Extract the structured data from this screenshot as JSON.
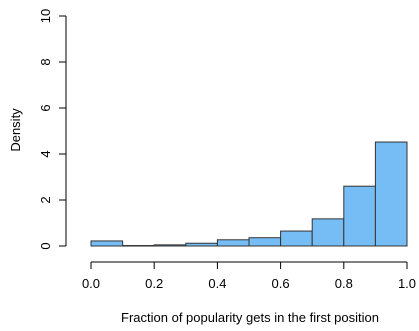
{
  "chart_data": {
    "type": "histogram",
    "title": "",
    "xlabel": "Fraction of popularity gets in the first position",
    "ylabel": "Density",
    "xlim": [
      0,
      1
    ],
    "ylim": [
      0,
      10
    ],
    "x_ticks": [
      0.0,
      0.2,
      0.4,
      0.6,
      0.8,
      1.0
    ],
    "x_tick_labels": [
      "0.0",
      "0.2",
      "0.4",
      "0.6",
      "0.8",
      "1.0"
    ],
    "y_ticks": [
      0,
      2,
      4,
      6,
      8,
      10
    ],
    "y_tick_labels": [
      "0",
      "2",
      "4",
      "6",
      "8",
      "10"
    ],
    "bins": [
      {
        "x0": 0.0,
        "x1": 0.1,
        "density": 0.22
      },
      {
        "x0": 0.1,
        "x1": 0.2,
        "density": 0.02
      },
      {
        "x0": 0.2,
        "x1": 0.3,
        "density": 0.05
      },
      {
        "x0": 0.3,
        "x1": 0.4,
        "density": 0.12
      },
      {
        "x0": 0.4,
        "x1": 0.5,
        "density": 0.27
      },
      {
        "x0": 0.5,
        "x1": 0.6,
        "density": 0.36
      },
      {
        "x0": 0.6,
        "x1": 0.7,
        "density": 0.65
      },
      {
        "x0": 0.7,
        "x1": 0.8,
        "density": 1.18
      },
      {
        "x0": 0.8,
        "x1": 0.9,
        "density": 2.6
      },
      {
        "x0": 0.9,
        "x1": 1.0,
        "density": 4.52
      }
    ],
    "bar_fill": "#76bdf6",
    "bar_stroke": "#333333",
    "grid": false,
    "legend": "none"
  }
}
